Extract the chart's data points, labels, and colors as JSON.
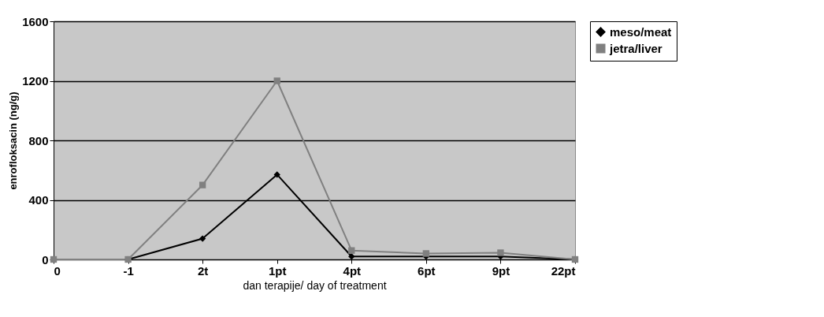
{
  "chart_data": {
    "type": "line",
    "xlabel": "dan terapije/ day of treatment",
    "ylabel": "enrofloksacin (ng/g)",
    "categories": [
      "0",
      "-1",
      "2t",
      "1pt",
      "4pt",
      "6pt",
      "9pt",
      "22pt"
    ],
    "series": [
      {
        "name": "meso/meat",
        "color": "#000000",
        "marker": "diamond",
        "values": [
          0,
          0,
          140,
          570,
          20,
          20,
          20,
          0
        ]
      },
      {
        "name": "jetra/liver",
        "color": "#808080",
        "marker": "square",
        "values": [
          0,
          0,
          500,
          1200,
          60,
          40,
          45,
          0
        ]
      }
    ],
    "ylim": [
      0,
      1600
    ],
    "yticks": [
      0,
      400,
      800,
      1200,
      1600
    ],
    "grid": "y",
    "legend": "right",
    "line_style": "solid"
  }
}
